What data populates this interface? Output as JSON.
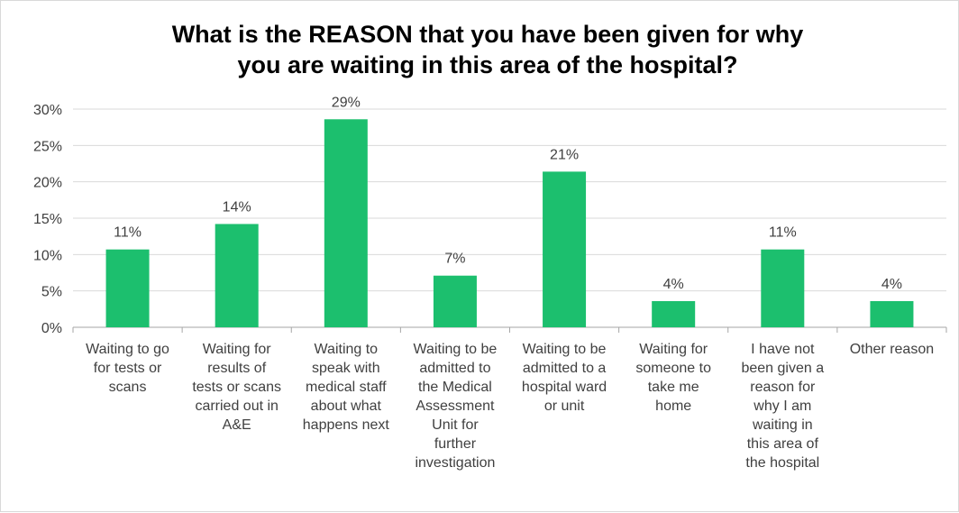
{
  "chart_data": {
    "type": "bar",
    "title_line1": "What is the REASON that you have been given for why",
    "title_line2": "you are waiting in this area of the hospital?",
    "categories": [
      [
        "Waiting to go",
        "for tests or",
        "scans"
      ],
      [
        "Waiting for",
        "results of",
        "tests or scans",
        "carried out in",
        "A&E"
      ],
      [
        "Waiting to",
        "speak with",
        "medical staff",
        "about what",
        "happens next"
      ],
      [
        "Waiting to be",
        "admitted to",
        "the Medical",
        "Assessment",
        "Unit for",
        "further",
        "investigation"
      ],
      [
        "Waiting to be",
        "admitted to a",
        "hospital ward",
        "or unit"
      ],
      [
        "Waiting for",
        "someone to",
        "take me",
        "home"
      ],
      [
        "I have not",
        "been given a",
        "reason for",
        "why I am",
        "waiting in",
        "this area of",
        "the hospital"
      ],
      [
        "Other reason"
      ]
    ],
    "values": [
      10.7,
      14.2,
      28.6,
      7.1,
      21.4,
      3.6,
      10.7,
      3.6
    ],
    "data_labels": [
      "11%",
      "14%",
      "29%",
      "7%",
      "21%",
      "4%",
      "11%",
      "4%"
    ],
    "y_ticks": [
      "0%",
      "5%",
      "10%",
      "15%",
      "20%",
      "25%",
      "30%"
    ],
    "y_tick_values": [
      0,
      5,
      10,
      15,
      20,
      25,
      30
    ],
    "ylim": [
      0,
      30
    ],
    "bar_color": "#1cbf6e",
    "grid": true,
    "legend": false
  }
}
